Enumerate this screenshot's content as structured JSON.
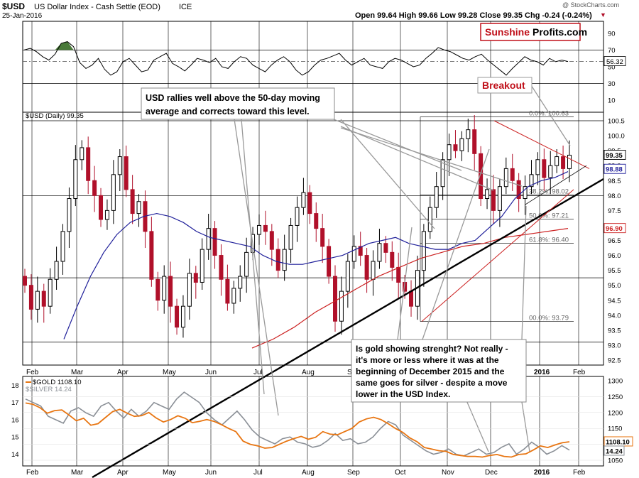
{
  "header": {
    "symbol": "$USD",
    "name": "US Dollar Index - Cash Settle (EOD)",
    "exchange": "ICE",
    "date": "25-Jan-2016",
    "ohlc": "Open 99.64  High 99.66  Low 99.28  Close 99.35  Chg -0.24 (-0.24%)",
    "down_marker": "▼",
    "copyright": "@ StockCharts.com"
  },
  "logo": {
    "part1": "Sunshine",
    "part2": "Profits.com"
  },
  "annotations": {
    "breakout": "Breakout",
    "box1": [
      "USD rallies well above the 50-day moving",
      "average and corrects toward this level."
    ],
    "box2": [
      "Is gold showing strenght? Not really -",
      "it's more or less where it was at the",
      "beginning of December 2015 and the",
      "same goes for silver - despite a move",
      "lower in the USD Index."
    ]
  },
  "colors": {
    "price_up": "#000000",
    "price_down": "#b0102a",
    "ma50": "#1f1f9a",
    "ma200": "#cc2222",
    "trendline": "#000000",
    "gold": "#e87511",
    "silver": "#8a8f96",
    "rsi_overbought_fill": "#4a7a3a",
    "logo_red": "#c0101a"
  },
  "chart_data": [
    {
      "type": "line",
      "panel": "rsi",
      "ylim": [
        0,
        100
      ],
      "ticks": [
        10,
        30,
        50,
        70,
        90
      ],
      "levels": [
        30,
        70
      ],
      "last_value": "56.32",
      "series": [
        {
          "values": [
            70,
            72,
            68,
            62,
            58,
            65,
            78,
            80,
            74,
            55,
            48,
            52,
            60,
            47,
            40,
            44,
            56,
            60,
            52,
            44,
            46,
            58,
            62,
            66,
            54,
            50,
            45,
            52,
            60,
            58,
            55,
            60,
            50,
            48,
            56,
            62,
            60,
            52,
            48,
            44,
            52,
            58,
            62,
            56,
            46,
            40,
            44,
            52,
            58,
            60,
            63,
            66,
            58,
            52,
            56,
            60,
            52,
            50,
            48,
            56,
            60,
            58,
            54,
            50,
            52,
            60,
            66,
            73,
            70,
            68,
            64,
            60,
            58,
            62,
            65,
            58,
            52,
            46,
            40,
            48,
            55,
            62,
            58,
            56,
            52,
            60,
            56,
            58,
            56.3
          ]
        }
      ]
    },
    {
      "type": "candlestick",
      "panel": "price",
      "legend": "$USD (Daily) 99.35",
      "ylim": [
        92.5,
        100.5
      ],
      "ticks": [
        92.5,
        93.0,
        93.5,
        94.0,
        94.5,
        95.0,
        95.5,
        96.0,
        96.5,
        97.0,
        97.5,
        98.0,
        98.5,
        99.0,
        99.5,
        100.0,
        100.5
      ],
      "x_labels": [
        "Feb",
        "Mar",
        "Apr",
        "May",
        "Jun",
        "Jul",
        "Aug",
        "Sep",
        "Oct",
        "Nov",
        "Dec",
        "2016",
        "Feb"
      ],
      "close": [
        95.0,
        94.2,
        94.8,
        94.3,
        95.2,
        95.8,
        96.8,
        97.9,
        99.2,
        99.6,
        98.5,
        98.0,
        97.2,
        97.5,
        98.7,
        99.3,
        98.2,
        97.4,
        97.8,
        96.8,
        95.2,
        94.5,
        95.3,
        94.3,
        93.6,
        94.3,
        95.4,
        95.1,
        96.2,
        96.9,
        96.0,
        95.2,
        94.4,
        94.9,
        95.3,
        96.1,
        96.7,
        97.0,
        96.8,
        96.2,
        95.5,
        96.2,
        97.0,
        97.6,
        98.1,
        97.4,
        96.9,
        96.3,
        95.3,
        93.8,
        94.8,
        95.8,
        96.3,
        96.0,
        95.2,
        95.8,
        96.4,
        96.1,
        95.6,
        95.1,
        94.8,
        94.3,
        95.5,
        96.8,
        97.6,
        98.3,
        99.2,
        99.7,
        99.5,
        99.9,
        100.2,
        99.4,
        97.9,
        98.2,
        97.5,
        98.3,
        98.9,
        98.5,
        97.9,
        98.3,
        98.7,
        99.2,
        98.6,
        99.0,
        99.3,
        98.9,
        99.35
      ],
      "ma50": [
        93.2,
        94.3,
        95.3,
        96.1,
        96.7,
        97.1,
        97.3,
        97.4,
        97.3,
        97.1,
        96.8,
        96.6,
        96.5,
        96.4,
        96.3,
        96.0,
        95.8,
        95.7,
        95.7,
        95.8,
        95.9,
        96.0,
        96.2,
        96.4,
        96.5,
        96.6,
        96.4,
        96.3,
        96.2,
        96.2,
        96.4,
        96.5,
        96.9,
        97.3,
        97.9,
        98.3,
        98.5,
        98.6,
        98.8
      ],
      "ma200": [
        92.9,
        93.2,
        93.6,
        94.1,
        94.5,
        94.9,
        95.3,
        95.6,
        95.9,
        96.1,
        96.3,
        96.4,
        96.6,
        96.7,
        96.8,
        96.9
      ],
      "ma50_last": "98.88",
      "ma200_last": "96.90",
      "fibonacci": [
        {
          "label": "0.0%: 100.63",
          "value": 100.63
        },
        {
          "label": "38.2%: 98.02",
          "value": 98.02
        },
        {
          "label": "50.0%: 97.21",
          "value": 97.21
        },
        {
          "label": "61.8%: 96.40",
          "value": 96.4
        },
        {
          "label": "00.0%: 93.79",
          "value": 93.79
        }
      ]
    },
    {
      "type": "line",
      "panel": "gold-silver",
      "series": [
        {
          "name": "$GOLD 1108.10",
          "axis": "right",
          "ylim": [
            1050,
            1300
          ],
          "ticks": [
            1050,
            1100,
            1150,
            1200,
            1250,
            1300
          ],
          "last_value": "1108.10",
          "values": [
            1230,
            1226,
            1215,
            1198,
            1206,
            1208,
            1192,
            1174,
            1182,
            1160,
            1165,
            1184,
            1203,
            1210,
            1198,
            1188,
            1190,
            1200,
            1183,
            1170,
            1178,
            1190,
            1182,
            1168,
            1172,
            1178,
            1172,
            1162,
            1150,
            1140,
            1110,
            1100,
            1095,
            1088,
            1090,
            1100,
            1110,
            1118,
            1125,
            1116,
            1122,
            1140,
            1132,
            1130,
            1140,
            1150,
            1170,
            1180,
            1185,
            1178,
            1165,
            1150,
            1138,
            1120,
            1108,
            1090,
            1085,
            1080,
            1078,
            1068,
            1065,
            1062,
            1062,
            1060,
            1065,
            1068,
            1062,
            1060,
            1068,
            1070,
            1082,
            1095,
            1090,
            1098,
            1105,
            1108.1
          ]
        },
        {
          "name": "$SILVER 14.24",
          "axis": "left",
          "ylim": [
            13.5,
            18.2
          ],
          "ticks": [
            14,
            15,
            16,
            17,
            18
          ],
          "last_value": "14.24",
          "values": [
            17.2,
            17.0,
            16.8,
            16.2,
            16.0,
            15.8,
            16.5,
            16.7,
            16.4,
            16.2,
            16.8,
            17.0,
            16.5,
            16.1,
            16.6,
            16.2,
            16.5,
            17.0,
            16.8,
            16.6,
            17.2,
            17.6,
            17.3,
            17.0,
            16.4,
            16.0,
            15.7,
            16.1,
            16.5,
            16.0,
            15.4,
            15.0,
            14.8,
            14.6,
            14.9,
            15.0,
            14.7,
            14.6,
            14.4,
            14.5,
            14.8,
            15.2,
            14.8,
            14.9,
            14.6,
            14.7,
            15.0,
            15.5,
            15.9,
            15.7,
            15.1,
            14.8,
            14.5,
            14.2,
            14.0,
            14.1,
            14.3,
            14.0,
            13.9,
            14.1,
            14.3,
            14.0,
            14.1,
            14.4,
            14.6,
            14.0,
            14.3,
            14.7,
            14.4,
            14.0,
            14.2,
            14.5,
            14.24
          ]
        }
      ]
    }
  ]
}
